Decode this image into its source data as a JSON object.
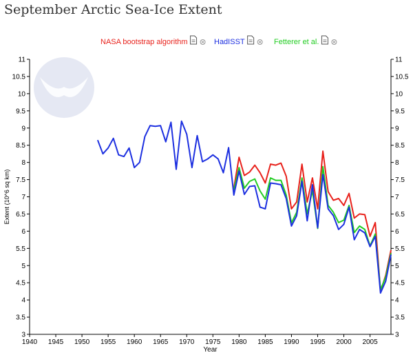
{
  "page": {
    "title": "September Arctic Sea-Ice Extent"
  },
  "colors": {
    "nasa": "#e8211b",
    "hadisst": "#1c2fe0",
    "fetterer": "#22cc22",
    "axis": "#000000",
    "logo": "#cfd6ea"
  },
  "icons": {
    "legend_item": [
      "document-icon",
      "close-icon"
    ]
  },
  "chart_data": {
    "type": "line",
    "title": "",
    "xlabel": "Year",
    "ylabel": "Extent (10^6 sq km)",
    "xlim": [
      1940,
      2009
    ],
    "ylim": [
      3,
      11
    ],
    "x_ticks": [
      1940,
      1945,
      1950,
      1955,
      1960,
      1965,
      1970,
      1975,
      1980,
      1985,
      1990,
      1995,
      2000,
      2005
    ],
    "y_ticks": [
      3,
      3.5,
      4,
      4.5,
      5,
      5.5,
      6,
      6.5,
      7,
      7.5,
      8,
      8.5,
      9,
      9.5,
      10,
      10.5,
      11
    ],
    "grid": false,
    "legend_position": "top-center",
    "series": [
      {
        "name": "NASA bootstrap algorithm",
        "color": "#e8211b",
        "x": [
          1979,
          1980,
          1981,
          1982,
          1983,
          1984,
          1985,
          1986,
          1987,
          1988,
          1989,
          1990,
          1991,
          1992,
          1993,
          1994,
          1995,
          1996,
          1997,
          1998,
          1999,
          2000,
          2001,
          2002,
          2003,
          2004,
          2005,
          2006,
          2007,
          2008,
          2009
        ],
        "y": [
          7.25,
          8.15,
          7.62,
          7.72,
          7.92,
          7.7,
          7.4,
          7.95,
          7.92,
          7.98,
          7.6,
          6.65,
          6.85,
          7.95,
          6.85,
          7.55,
          6.65,
          8.33,
          7.15,
          6.9,
          6.95,
          6.75,
          7.1,
          6.38,
          6.5,
          6.48,
          5.85,
          6.25,
          4.25,
          4.72,
          5.45
        ]
      },
      {
        "name": "HadISST",
        "color": "#1c2fe0",
        "x": [
          1953,
          1954,
          1955,
          1956,
          1957,
          1958,
          1959,
          1960,
          1961,
          1962,
          1963,
          1964,
          1965,
          1966,
          1967,
          1968,
          1969,
          1970,
          1971,
          1972,
          1973,
          1974,
          1975,
          1976,
          1977,
          1978,
          1979,
          1980,
          1981,
          1982,
          1983,
          1984,
          1985,
          1986,
          1987,
          1988,
          1989,
          1990,
          1991,
          1992,
          1993,
          1994,
          1995,
          1996,
          1997,
          1998,
          1999,
          2000,
          2001,
          2002,
          2003,
          2004,
          2005,
          2006,
          2007,
          2008,
          2009
        ],
        "y": [
          8.65,
          8.25,
          8.42,
          8.7,
          8.22,
          8.17,
          8.42,
          7.85,
          8.0,
          8.75,
          9.07,
          9.05,
          9.07,
          8.6,
          9.17,
          7.8,
          9.2,
          8.82,
          7.85,
          8.78,
          8.02,
          8.1,
          8.22,
          8.1,
          7.7,
          8.43,
          7.05,
          7.75,
          7.07,
          7.3,
          7.32,
          6.7,
          6.65,
          7.4,
          7.38,
          7.35,
          6.95,
          6.15,
          6.45,
          7.45,
          6.3,
          7.35,
          6.1,
          7.65,
          6.65,
          6.45,
          6.05,
          6.2,
          6.7,
          5.75,
          6.05,
          5.95,
          5.55,
          5.85,
          4.2,
          4.55,
          5.32
        ]
      },
      {
        "name": "Fetterer et al.",
        "color": "#22cc22",
        "x": [
          1979,
          1980,
          1981,
          1982,
          1983,
          1984,
          1985,
          1986,
          1987,
          1988,
          1989,
          1990,
          1991,
          1992,
          1993,
          1994,
          1995,
          1996,
          1997,
          1998,
          1999,
          2000,
          2001,
          2002,
          2003,
          2004,
          2005,
          2006,
          2007,
          2008,
          2009
        ],
        "y": [
          7.2,
          7.85,
          7.25,
          7.45,
          7.52,
          7.17,
          6.93,
          7.55,
          7.48,
          7.48,
          7.05,
          6.24,
          6.55,
          7.55,
          6.5,
          7.18,
          6.08,
          7.88,
          6.75,
          6.55,
          6.25,
          6.32,
          6.75,
          5.96,
          6.15,
          6.05,
          5.57,
          5.92,
          4.3,
          4.67,
          5.36
        ]
      }
    ]
  }
}
